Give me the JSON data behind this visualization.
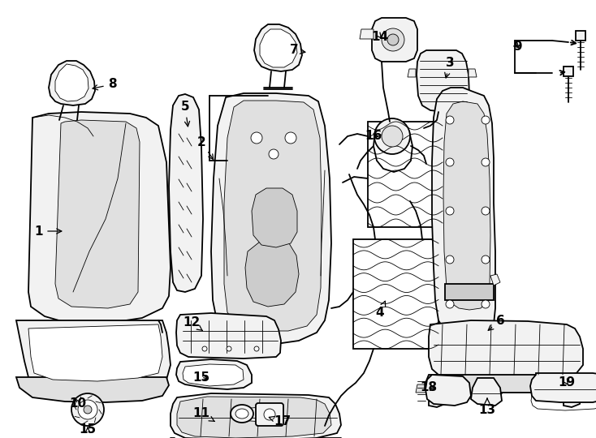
{
  "bg_color": "#ffffff",
  "line_color": "#000000",
  "fig_width": 7.34,
  "fig_height": 5.4,
  "dpi": 100,
  "lw_main": 1.3,
  "lw_thin": 0.6,
  "lw_thick": 1.8,
  "gray_fill": "#f2f2f2",
  "mid_gray": "#e0e0e0",
  "dark_gray": "#cccccc"
}
